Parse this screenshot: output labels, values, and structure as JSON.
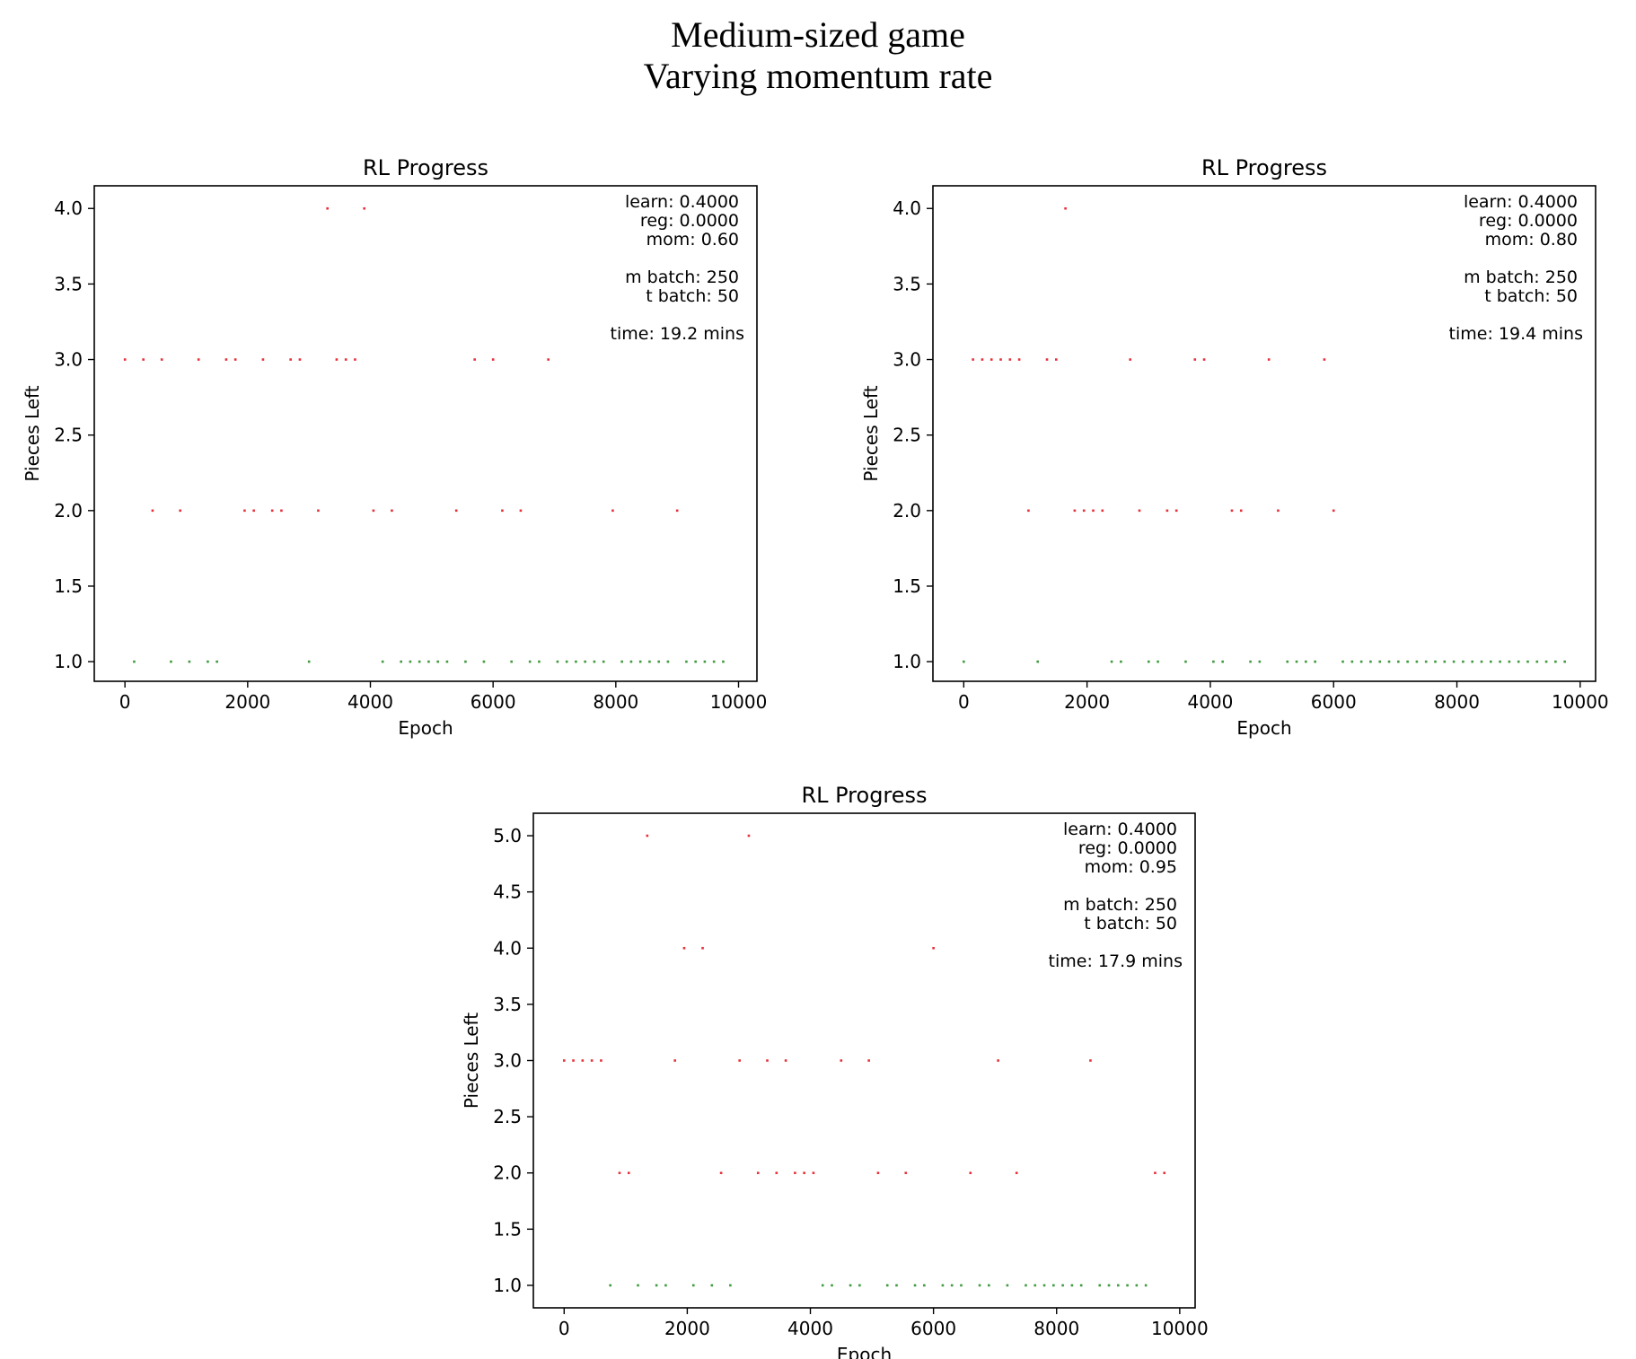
{
  "figure": {
    "title_line1": "Medium-sized game",
    "title_line2": "Varying momentum rate"
  },
  "colors": {
    "red": "#e8303a",
    "green": "#3f9a3f",
    "axes": "#000000"
  },
  "chart_data": [
    {
      "type": "scatter",
      "title": "RL Progress",
      "xlabel": "Epoch",
      "ylabel": "Pieces Left",
      "xlim": [
        -500,
        10300
      ],
      "ylim": [
        0.87,
        4.15
      ],
      "xticks": [
        0,
        2000,
        4000,
        6000,
        8000,
        10000
      ],
      "yticks": [
        1.0,
        1.5,
        2.0,
        2.5,
        3.0,
        3.5,
        4.0
      ],
      "tick_labels_y": [
        "1.0",
        "1.5",
        "2.0",
        "2.5",
        "3.0",
        "3.5",
        "4.0"
      ],
      "grid": false,
      "annotation": [
        "learn: 0.4000",
        "reg: 0.0000",
        "mom: 0.60",
        "",
        "m batch: 250",
        "t batch: 50",
        "",
        "time: 19.2 mins"
      ],
      "series": [
        {
          "color": "red",
          "points": [
            [
              0,
              3
            ],
            [
              300,
              3
            ],
            [
              600,
              3
            ],
            [
              1200,
              3
            ],
            [
              1650,
              3
            ],
            [
              1800,
              3
            ],
            [
              2250,
              3
            ],
            [
              2700,
              3
            ],
            [
              2850,
              3
            ],
            [
              3450,
              3
            ],
            [
              3600,
              3
            ],
            [
              3750,
              3
            ],
            [
              5700,
              3
            ],
            [
              6000,
              3
            ],
            [
              6900,
              3
            ],
            [
              3300,
              4
            ],
            [
              3900,
              4
            ],
            [
              450,
              2
            ],
            [
              900,
              2
            ],
            [
              1950,
              2
            ],
            [
              2100,
              2
            ],
            [
              2400,
              2
            ],
            [
              2550,
              2
            ],
            [
              3150,
              2
            ],
            [
              4050,
              2
            ],
            [
              4350,
              2
            ],
            [
              5400,
              2
            ],
            [
              6150,
              2
            ],
            [
              6450,
              2
            ],
            [
              7950,
              2
            ],
            [
              9000,
              2
            ]
          ]
        },
        {
          "color": "green",
          "points": [
            [
              150,
              1
            ],
            [
              750,
              1
            ],
            [
              1050,
              1
            ],
            [
              1350,
              1
            ],
            [
              1500,
              1
            ],
            [
              3000,
              1
            ],
            [
              4200,
              1
            ],
            [
              4500,
              1
            ],
            [
              4650,
              1
            ],
            [
              4800,
              1
            ],
            [
              4950,
              1
            ],
            [
              5100,
              1
            ],
            [
              5250,
              1
            ],
            [
              5550,
              1
            ],
            [
              5850,
              1
            ],
            [
              6300,
              1
            ],
            [
              6600,
              1
            ],
            [
              6750,
              1
            ],
            [
              7050,
              1
            ],
            [
              7200,
              1
            ],
            [
              7350,
              1
            ],
            [
              7500,
              1
            ],
            [
              7650,
              1
            ],
            [
              7800,
              1
            ],
            [
              8100,
              1
            ],
            [
              8250,
              1
            ],
            [
              8400,
              1
            ],
            [
              8550,
              1
            ],
            [
              8700,
              1
            ],
            [
              8850,
              1
            ],
            [
              9150,
              1
            ],
            [
              9300,
              1
            ],
            [
              9450,
              1
            ],
            [
              9600,
              1
            ],
            [
              9750,
              1
            ]
          ]
        }
      ]
    },
    {
      "type": "scatter",
      "title": "RL Progress",
      "xlabel": "Epoch",
      "ylabel": "Pieces Left",
      "xlim": [
        -500,
        10250
      ],
      "ylim": [
        0.87,
        4.15
      ],
      "xticks": [
        0,
        2000,
        4000,
        6000,
        8000,
        10000
      ],
      "yticks": [
        1.0,
        1.5,
        2.0,
        2.5,
        3.0,
        3.5,
        4.0
      ],
      "tick_labels_y": [
        "1.0",
        "1.5",
        "2.0",
        "2.5",
        "3.0",
        "3.5",
        "4.0"
      ],
      "grid": false,
      "annotation": [
        "learn: 0.4000",
        "reg: 0.0000",
        "mom: 0.80",
        "",
        "m batch: 250",
        "t batch: 50",
        "",
        "time: 19.4 mins"
      ],
      "series": [
        {
          "color": "red",
          "points": [
            [
              150,
              3
            ],
            [
              300,
              3
            ],
            [
              450,
              3
            ],
            [
              600,
              3
            ],
            [
              750,
              3
            ],
            [
              900,
              3
            ],
            [
              1350,
              3
            ],
            [
              1500,
              3
            ],
            [
              2700,
              3
            ],
            [
              3750,
              3
            ],
            [
              3900,
              3
            ],
            [
              4950,
              3
            ],
            [
              5850,
              3
            ],
            [
              1650,
              4
            ],
            [
              1050,
              2
            ],
            [
              1800,
              2
            ],
            [
              1950,
              2
            ],
            [
              2100,
              2
            ],
            [
              2250,
              2
            ],
            [
              2850,
              2
            ],
            [
              3300,
              2
            ],
            [
              3450,
              2
            ],
            [
              4350,
              2
            ],
            [
              4500,
              2
            ],
            [
              5100,
              2
            ],
            [
              6000,
              2
            ]
          ]
        },
        {
          "color": "green",
          "points": [
            [
              0,
              1
            ],
            [
              1200,
              1
            ],
            [
              2400,
              1
            ],
            [
              2550,
              1
            ],
            [
              3000,
              1
            ],
            [
              3150,
              1
            ],
            [
              3600,
              1
            ],
            [
              4050,
              1
            ],
            [
              4200,
              1
            ],
            [
              4650,
              1
            ],
            [
              4800,
              1
            ],
            [
              5250,
              1
            ],
            [
              5400,
              1
            ],
            [
              5550,
              1
            ],
            [
              5700,
              1
            ],
            [
              6150,
              1
            ],
            [
              6300,
              1
            ],
            [
              6450,
              1
            ],
            [
              6600,
              1
            ],
            [
              6750,
              1
            ],
            [
              6900,
              1
            ],
            [
              7050,
              1
            ],
            [
              7200,
              1
            ],
            [
              7350,
              1
            ],
            [
              7500,
              1
            ],
            [
              7650,
              1
            ],
            [
              7800,
              1
            ],
            [
              7950,
              1
            ],
            [
              8100,
              1
            ],
            [
              8250,
              1
            ],
            [
              8400,
              1
            ],
            [
              8550,
              1
            ],
            [
              8700,
              1
            ],
            [
              8850,
              1
            ],
            [
              9000,
              1
            ],
            [
              9150,
              1
            ],
            [
              9300,
              1
            ],
            [
              9450,
              1
            ],
            [
              9600,
              1
            ],
            [
              9750,
              1
            ]
          ]
        }
      ]
    },
    {
      "type": "scatter",
      "title": "RL Progress",
      "xlabel": "Epoch",
      "ylabel": "Pieces Left",
      "xlim": [
        -500,
        10250
      ],
      "ylim": [
        0.8,
        5.2
      ],
      "xticks": [
        0,
        2000,
        4000,
        6000,
        8000,
        10000
      ],
      "yticks": [
        1.0,
        1.5,
        2.0,
        2.5,
        3.0,
        3.5,
        4.0,
        4.5,
        5.0
      ],
      "tick_labels_y": [
        "1.0",
        "1.5",
        "2.0",
        "2.5",
        "3.0",
        "3.5",
        "4.0",
        "4.5",
        "5.0"
      ],
      "grid": false,
      "annotation": [
        "learn: 0.4000",
        "reg: 0.0000",
        "mom: 0.95",
        "",
        "m batch: 250",
        "t batch: 50",
        "",
        "time: 17.9 mins"
      ],
      "series": [
        {
          "color": "red",
          "points": [
            [
              0,
              3
            ],
            [
              150,
              3
            ],
            [
              300,
              3
            ],
            [
              450,
              3
            ],
            [
              600,
              3
            ],
            [
              1800,
              3
            ],
            [
              2850,
              3
            ],
            [
              3300,
              3
            ],
            [
              3600,
              3
            ],
            [
              4500,
              3
            ],
            [
              4950,
              3
            ],
            [
              7050,
              3
            ],
            [
              8550,
              3
            ],
            [
              1350,
              5
            ],
            [
              3000,
              5
            ],
            [
              1950,
              4
            ],
            [
              2250,
              4
            ],
            [
              6000,
              4
            ],
            [
              900,
              2
            ],
            [
              1050,
              2
            ],
            [
              2550,
              2
            ],
            [
              3150,
              2
            ],
            [
              3450,
              2
            ],
            [
              3750,
              2
            ],
            [
              3900,
              2
            ],
            [
              4050,
              2
            ],
            [
              5100,
              2
            ],
            [
              5550,
              2
            ],
            [
              6600,
              2
            ],
            [
              7350,
              2
            ],
            [
              9600,
              2
            ],
            [
              9750,
              2
            ]
          ]
        },
        {
          "color": "green",
          "points": [
            [
              750,
              1
            ],
            [
              1200,
              1
            ],
            [
              1500,
              1
            ],
            [
              1650,
              1
            ],
            [
              2100,
              1
            ],
            [
              2400,
              1
            ],
            [
              2700,
              1
            ],
            [
              4200,
              1
            ],
            [
              4350,
              1
            ],
            [
              4650,
              1
            ],
            [
              4800,
              1
            ],
            [
              5250,
              1
            ],
            [
              5400,
              1
            ],
            [
              5700,
              1
            ],
            [
              5850,
              1
            ],
            [
              6150,
              1
            ],
            [
              6300,
              1
            ],
            [
              6450,
              1
            ],
            [
              6750,
              1
            ],
            [
              6900,
              1
            ],
            [
              7200,
              1
            ],
            [
              7500,
              1
            ],
            [
              7650,
              1
            ],
            [
              7800,
              1
            ],
            [
              7950,
              1
            ],
            [
              8100,
              1
            ],
            [
              8250,
              1
            ],
            [
              8400,
              1
            ],
            [
              8700,
              1
            ],
            [
              8850,
              1
            ],
            [
              9000,
              1
            ],
            [
              9150,
              1
            ],
            [
              9300,
              1
            ],
            [
              9450,
              1
            ]
          ]
        }
      ]
    }
  ]
}
